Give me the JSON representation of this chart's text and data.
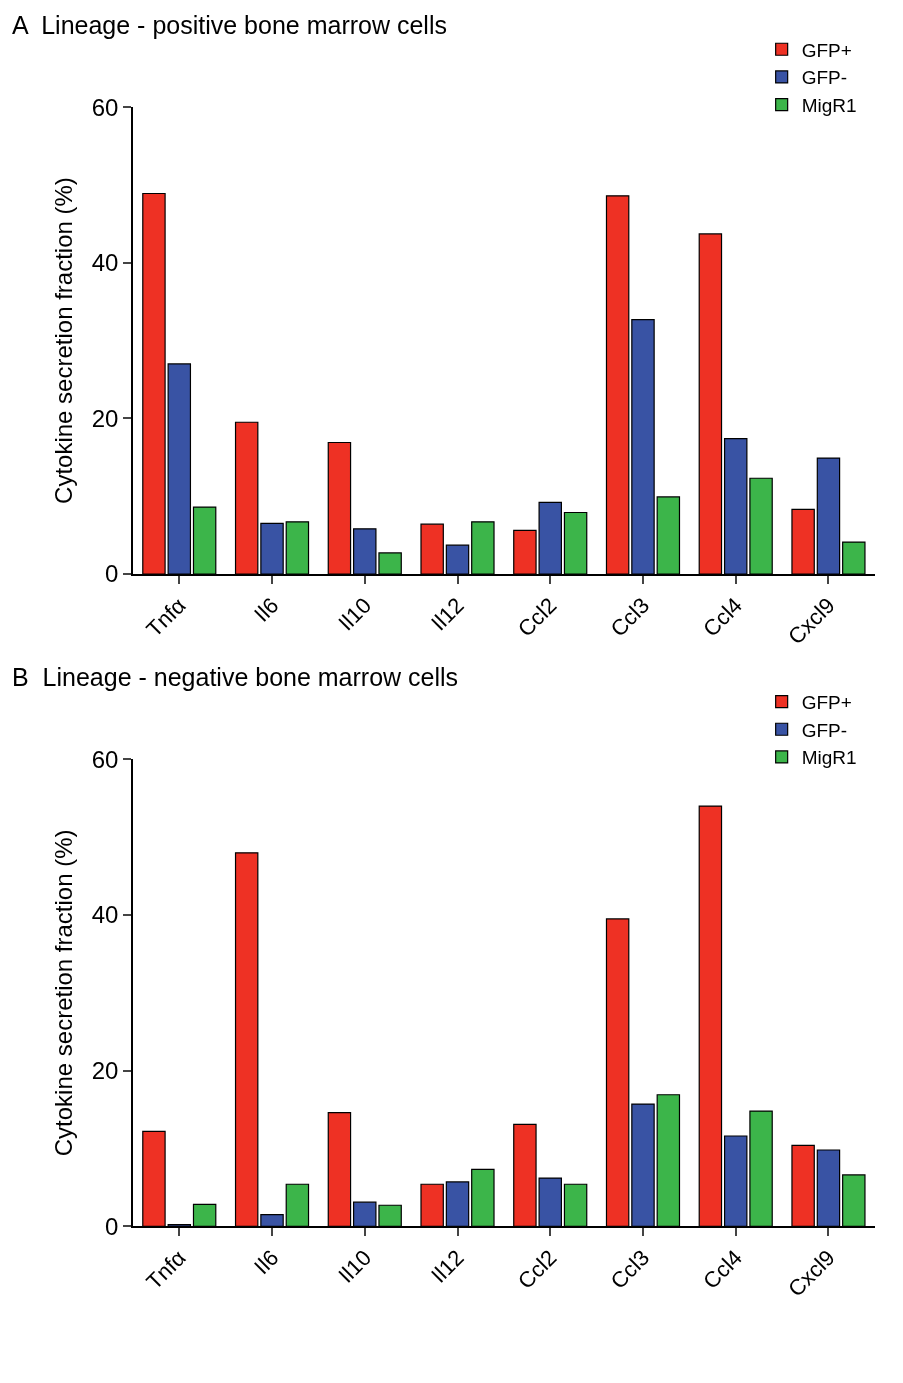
{
  "chart_data": [
    {
      "type": "bar",
      "title": "A  Lineage - positive bone marrow cells",
      "ylabel": "Cytokine secretion fraction (%)",
      "categories": [
        "Tnfα",
        "Il6",
        "Il10",
        "Il12",
        "Ccl2",
        "Ccl3",
        "Ccl4",
        "Cxcl9"
      ],
      "ylim": [
        0,
        60
      ],
      "yticks": [
        0,
        20,
        40,
        60
      ],
      "legend": "top right",
      "series": [
        {
          "name": "GFP+",
          "color": "#ee3124",
          "values": [
            48.9,
            19.5,
            16.9,
            6.4,
            5.6,
            48.6,
            43.7,
            8.3
          ]
        },
        {
          "name": "GFP-",
          "color": "#3953a4",
          "values": [
            27.0,
            6.5,
            5.8,
            3.7,
            9.2,
            32.7,
            17.4,
            14.9
          ]
        },
        {
          "name": "MigR1",
          "color": "#3cb54a",
          "values": [
            8.6,
            6.7,
            2.7,
            6.7,
            7.9,
            9.9,
            12.3,
            4.1
          ]
        }
      ]
    },
    {
      "type": "bar",
      "title": "B  Lineage - negative bone marrow cells",
      "ylabel": "Cytokine secretion fraction (%)",
      "categories": [
        "Tnfα",
        "Il6",
        "Il10",
        "Il12",
        "Ccl2",
        "Ccl3",
        "Ccl4",
        "Cxcl9"
      ],
      "ylim": [
        0,
        60
      ],
      "yticks": [
        0,
        20,
        40,
        60
      ],
      "legend": "top right",
      "series": [
        {
          "name": "GFP+",
          "color": "#ee3124",
          "values": [
            12.2,
            48.0,
            14.6,
            5.4,
            13.1,
            39.5,
            54.0,
            10.4
          ]
        },
        {
          "name": "GFP-",
          "color": "#3953a4",
          "values": [
            0.2,
            1.5,
            3.1,
            5.7,
            6.2,
            15.7,
            11.6,
            9.8
          ]
        },
        {
          "name": "MigR1",
          "color": "#3cb54a",
          "values": [
            2.8,
            5.4,
            2.7,
            7.3,
            5.4,
            16.9,
            14.8,
            6.6
          ]
        }
      ]
    }
  ]
}
